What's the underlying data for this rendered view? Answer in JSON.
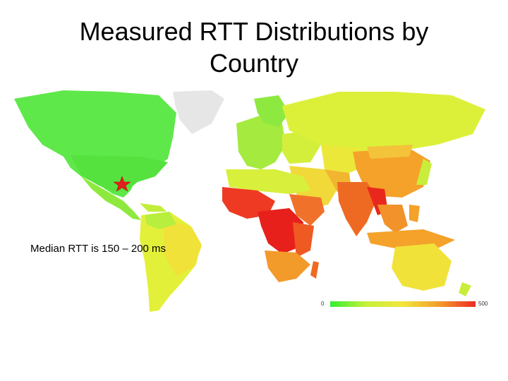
{
  "slide": {
    "title": "Measured RTT Distributions by Country",
    "callout": "Median RTT is  150 – 200 ms"
  },
  "map": {
    "marker": {
      "type": "star",
      "color": "#e0201b"
    },
    "legend": {
      "min_label": "0",
      "max_label": "500",
      "gradient": [
        "#33ee33",
        "#c8f03a",
        "#f2e63c",
        "#f39c2a",
        "#ee2a24"
      ]
    },
    "colors": {
      "low": "#5fe84a",
      "low_mid": "#a8ec3e",
      "mid": "#dff03a",
      "mid_high": "#f1d93a",
      "high": "#f4a22a",
      "very_high": "#ee5a22",
      "max": "#e8201c",
      "no_data": "#e6e6e6"
    }
  }
}
